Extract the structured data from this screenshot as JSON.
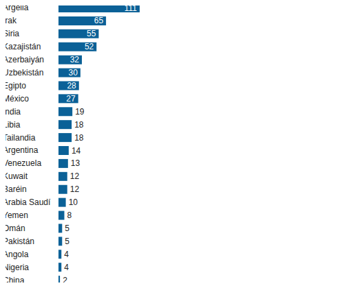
{
  "chart_data": {
    "type": "bar",
    "orientation": "horizontal",
    "categories": [
      "Argelia",
      "Irak",
      "Siria",
      "Kazajistán",
      "Azerbaiyán",
      "Uzbekistán",
      "Egipto",
      "México",
      "India",
      "Libia",
      "Tailandia",
      "Argentina",
      "Venezuela",
      "Kuwait",
      "Baréin",
      "Arabia Saudí",
      "Yemen",
      "Omán",
      "Pakistán",
      "Angola",
      "Nigeria",
      "China"
    ],
    "values": [
      111,
      65,
      55,
      52,
      32,
      30,
      28,
      27,
      19,
      18,
      18,
      14,
      13,
      12,
      12,
      10,
      8,
      5,
      5,
      4,
      4,
      2
    ],
    "color": "#0b6197",
    "data_labels": true,
    "tick_labels": "y"
  }
}
